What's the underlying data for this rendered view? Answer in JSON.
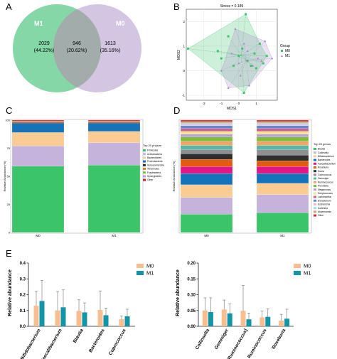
{
  "panels": {
    "A": "A",
    "B": "B",
    "C": "C",
    "D": "D",
    "E": "E"
  },
  "chart_data": [
    {
      "type": "venn",
      "panel": "A",
      "sets": [
        {
          "name": "M1",
          "color": "#5cc98a"
        },
        {
          "name": "M0",
          "color": "#c9b8dc"
        }
      ],
      "regions": [
        {
          "set": "M1 only",
          "count": "2029",
          "percent": "(44.22%)"
        },
        {
          "set": "M1 & M0",
          "count": "946",
          "percent": "(20.62%)"
        },
        {
          "set": "M0 only",
          "count": "1613",
          "percent": "(35.16%)"
        }
      ]
    },
    {
      "type": "scatter",
      "panel": "B",
      "title": "Stress = 0.189",
      "xlabel": "MDS1",
      "ylabel": "MDS2",
      "xlim": [
        -3.0,
        2.2
      ],
      "ylim": [
        -1.2,
        2.5
      ],
      "xticks": [
        "-2",
        "-1",
        "0",
        "1"
      ],
      "yticks": [
        "-1",
        "0",
        "1",
        "2"
      ],
      "legend": {
        "title": "Group",
        "position": "right"
      },
      "series": [
        {
          "name": "M0",
          "color": "#3cc46a",
          "marker": "square",
          "hull": [
            [
              -2.9,
              0.9
            ],
            [
              0.4,
              2.3
            ],
            [
              1.2,
              1.1
            ],
            [
              1.6,
              0.6
            ],
            [
              0.3,
              -0.9
            ]
          ],
          "points": [
            [
              -2.9,
              0.9
            ],
            [
              -1.2,
              0.8
            ],
            [
              -1.0,
              0.5
            ],
            [
              -0.6,
              1.4
            ],
            [
              -0.3,
              0.2
            ],
            [
              0.0,
              0.6
            ],
            [
              0.2,
              0.9
            ],
            [
              0.3,
              -0.9
            ],
            [
              0.4,
              2.3
            ],
            [
              0.5,
              0.4
            ],
            [
              0.7,
              0.2
            ],
            [
              0.9,
              0.7
            ],
            [
              1.0,
              0.1
            ],
            [
              1.2,
              1.1
            ],
            [
              1.4,
              0.3
            ],
            [
              1.6,
              0.6
            ]
          ]
        },
        {
          "name": "M1",
          "color": "#a98bc8",
          "marker": "triangle",
          "hull": [
            [
              -1.0,
              0.0
            ],
            [
              -0.2,
              1.7
            ],
            [
              1.5,
              1.2
            ],
            [
              1.9,
              0.5
            ],
            [
              0.6,
              -0.6
            ],
            [
              -0.6,
              -0.7
            ]
          ],
          "points": [
            [
              -1.0,
              0.0
            ],
            [
              -0.6,
              -0.7
            ],
            [
              -0.4,
              0.7
            ],
            [
              -0.2,
              1.7
            ],
            [
              0.0,
              0.3
            ],
            [
              0.1,
              -0.2
            ],
            [
              0.3,
              1.1
            ],
            [
              0.5,
              0.8
            ],
            [
              0.6,
              -0.6
            ],
            [
              0.8,
              0.2
            ],
            [
              1.1,
              0.5
            ],
            [
              1.3,
              0.4
            ],
            [
              1.5,
              1.2
            ],
            [
              1.9,
              0.5
            ]
          ]
        }
      ]
    },
    {
      "type": "stacked-bar",
      "panel": "C",
      "ylabel": "Relative Abundance (%)",
      "yticks": [
        "0",
        "25",
        "50",
        "75",
        "100"
      ],
      "categories": [
        "M0",
        "M1"
      ],
      "legend": {
        "title": "Top 20 phylum",
        "position": "right"
      },
      "series": [
        {
          "name": "Firmicutes",
          "color": "#3cc46a",
          "values": [
            59,
            60
          ]
        },
        {
          "name": "Actinobacteria",
          "color": "#c6b3dc",
          "values": [
            18,
            20
          ]
        },
        {
          "name": "Bacteroidetes",
          "color": "#fbcb94",
          "values": [
            12,
            10
          ]
        },
        {
          "name": "Proteobacteria",
          "color": "#1573b9",
          "values": [
            8,
            7
          ]
        },
        {
          "name": "Verrucomicrobia",
          "color": "#2e2e2e",
          "values": [
            1,
            1
          ]
        },
        {
          "name": "Tenericutes",
          "color": "#ee7b2c",
          "values": [
            0.5,
            0.5
          ]
        },
        {
          "name": "Fusobacteria",
          "color": "#7cbf3a",
          "values": [
            0.3,
            0.3
          ]
        },
        {
          "name": "Synergistetes",
          "color": "#b89dd8",
          "values": [
            0.2,
            0.2
          ]
        },
        {
          "name": "Other",
          "color": "#e11f2e",
          "values": [
            1,
            1
          ]
        }
      ]
    },
    {
      "type": "stacked-bar",
      "panel": "D",
      "ylabel": "Relative Abundance (%)",
      "categories": [
        "M0",
        "M1"
      ],
      "legend": {
        "title": "Top 20 genus",
        "position": "right"
      },
      "series": [
        {
          "name": "Blautia",
          "color": "#3cc46a",
          "values": [
            13,
            14
          ]
        },
        {
          "name": "Collinsella",
          "color": "#c6b3dc",
          "values": [
            12,
            13
          ]
        },
        {
          "name": "Bifidobacterium",
          "color": "#fbcb94",
          "values": [
            9,
            8
          ]
        },
        {
          "name": "Bacteroides",
          "color": "#1573b9",
          "values": [
            8,
            7
          ]
        },
        {
          "name": "Faecalibacterium",
          "color": "#e11785",
          "values": [
            5,
            5
          ]
        },
        {
          "name": "Roseburia",
          "color": "#e25b0e",
          "values": [
            5,
            4
          ]
        },
        {
          "name": "Dorea",
          "color": "#2e2e2e",
          "values": [
            4,
            4
          ]
        },
        {
          "name": "Coprococcus",
          "color": "#8f8f8f",
          "values": [
            3,
            4
          ]
        },
        {
          "name": "Gemmiger",
          "color": "#56b7a8",
          "values": [
            3,
            3
          ]
        },
        {
          "name": "Ruminococcus",
          "color": "#f2a36a",
          "values": [
            3,
            3
          ]
        },
        {
          "name": "Prevotella",
          "color": "#7cbf3a",
          "values": [
            3,
            3
          ]
        },
        {
          "name": "Megamonas",
          "color": "#b89dd8",
          "values": [
            2,
            2
          ]
        },
        {
          "name": "Streptococcus",
          "color": "#f6e58d",
          "values": [
            2,
            2
          ]
        },
        {
          "name": "Lactobacillus",
          "color": "#d35d8a",
          "values": [
            2,
            2
          ]
        },
        {
          "name": "Eubacterium",
          "color": "#5b8bd2",
          "values": [
            2,
            2
          ]
        },
        {
          "name": "Escherichia",
          "color": "#f9b7c8",
          "values": [
            1,
            1
          ]
        },
        {
          "name": "Sutterella",
          "color": "#9dd8e8",
          "values": [
            1,
            1
          ]
        },
        {
          "name": "Akkermansia",
          "color": "#c9a36b",
          "values": [
            1,
            1
          ]
        },
        {
          "name": "Other",
          "color": "#e11f2e",
          "values": [
            1,
            1
          ]
        }
      ]
    },
    {
      "type": "bar",
      "panel": "E-left",
      "ylabel": "Relative abundance",
      "ylim": [
        0,
        0.4
      ],
      "yticks": [
        "0.0",
        "0.1",
        "0.2",
        "0.3",
        "0.4"
      ],
      "categories": [
        "Bifidobacterium",
        "Faecalibacterium",
        "Blautia",
        "Bacteroides",
        "Coprococcus"
      ],
      "legend": {
        "position": "top-right"
      },
      "series": [
        {
          "name": "M0",
          "color": "#f8be90",
          "values": [
            0.13,
            0.1,
            0.097,
            0.104,
            0.045
          ],
          "errors": [
            0.09,
            0.12,
            0.07,
            0.12,
            0.02
          ]
        },
        {
          "name": "M1",
          "color": "#1295a6",
          "values": [
            0.16,
            0.12,
            0.088,
            0.07,
            0.063
          ],
          "errors": [
            0.13,
            0.11,
            0.06,
            0.045,
            0.045
          ]
        }
      ]
    },
    {
      "type": "bar",
      "panel": "E-right",
      "ylabel": "Relative abundance",
      "ylim": [
        0,
        0.2
      ],
      "yticks": [
        "0.00",
        "0.05",
        "0.10",
        "0.15",
        "0.20"
      ],
      "categories": [
        "Collinsella",
        "Gemmiger",
        "[Ruminococcus]",
        "Ruminococcus",
        "Roseburia"
      ],
      "legend": {
        "position": "top-right"
      },
      "series": [
        {
          "name": "M0",
          "color": "#f8be90",
          "values": [
            0.05,
            0.053,
            0.049,
            0.028,
            0.018
          ],
          "errors": [
            0.04,
            0.03,
            0.08,
            0.02,
            0.02
          ]
        },
        {
          "name": "M1",
          "color": "#1295a6",
          "values": [
            0.045,
            0.041,
            0.022,
            0.03,
            0.024
          ],
          "errors": [
            0.045,
            0.03,
            0.02,
            0.025,
            0.03
          ]
        }
      ]
    }
  ]
}
